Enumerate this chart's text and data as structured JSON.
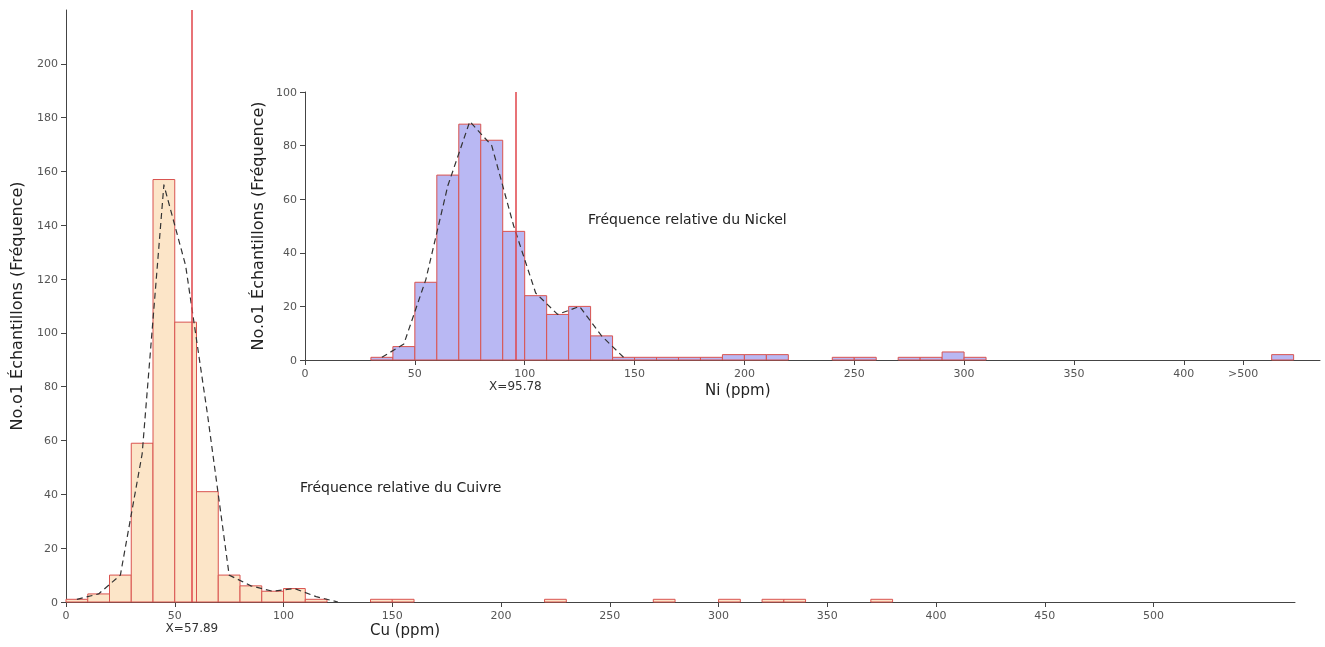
{
  "chart_data": [
    {
      "type": "histogram",
      "xlabel": "Cu (ppm)",
      "ylabel": "No.o1 Échantillons (Fréquence)",
      "xlim": [
        0,
        565
      ],
      "ylim": [
        0,
        220
      ],
      "xticks": [
        0,
        50,
        100,
        150,
        200,
        250,
        300,
        350,
        400,
        450,
        500
      ],
      "yticks": [
        0,
        20,
        40,
        60,
        80,
        100,
        120,
        140,
        160,
        180,
        200
      ],
      "grid": false,
      "annotations": [
        "Fréquence relative du Cuivre"
      ],
      "ref_lines": [
        {
          "axis": "x",
          "value": 57.89,
          "label": "X=57.89",
          "color": "#e0454a"
        }
      ],
      "series": [
        {
          "color": "#fce5c8",
          "bins": [
            0,
            10,
            20,
            30,
            40,
            50,
            60,
            70,
            80,
            90,
            100,
            110,
            120,
            130,
            140,
            150,
            160,
            170,
            180,
            190,
            200,
            210,
            220,
            230,
            240,
            250,
            260,
            270,
            280,
            290,
            300,
            310,
            320,
            330,
            340,
            350,
            360,
            370,
            380
          ],
          "values": [
            1,
            3,
            10,
            59,
            157,
            104,
            41,
            10,
            6,
            4,
            5,
            1,
            0,
            0,
            1,
            1,
            0,
            0,
            0,
            0,
            0,
            0,
            1,
            0,
            0,
            0,
            0,
            1,
            0,
            0,
            1,
            0,
            1,
            1,
            0,
            0,
            0,
            1
          ]
        },
        {
          "type": "line",
          "color": "#333333",
          "line_style": "dashed",
          "marker": "none",
          "x": [
            5,
            15,
            25,
            35,
            45,
            55,
            65,
            75,
            85,
            95,
            105,
            115,
            125
          ],
          "values": [
            1,
            3,
            10,
            55,
            155,
            125,
            70,
            10,
            6,
            4,
            5,
            2,
            0
          ]
        }
      ]
    },
    {
      "type": "histogram",
      "xlabel": "Ni (ppm)",
      "ylabel": "No.o1 Échantillons (Fréquence)",
      "xlim": [
        0,
        462
      ],
      "ylim": [
        0,
        100
      ],
      "xticks": [
        0,
        50,
        100,
        150,
        200,
        250,
        300,
        350,
        400,
        {
          "value": 427,
          "label": ">500"
        }
      ],
      "yticks": [
        0,
        20,
        40,
        60,
        80,
        100
      ],
      "grid": false,
      "annotations": [
        "Fréquence relative du Nickel"
      ],
      "ref_lines": [
        {
          "axis": "x",
          "value": 95.78,
          "label": "X=95.78",
          "color": "#e0454a"
        }
      ],
      "series": [
        {
          "color": "#b9b8f3",
          "bins": [
            30,
            40,
            50,
            60,
            70,
            80,
            90,
            100,
            110,
            120,
            130,
            140,
            150,
            160,
            170,
            180,
            190,
            200,
            210,
            220,
            230,
            240,
            250,
            260,
            270,
            280,
            290,
            300,
            310,
            320,
            330,
            340,
            350,
            360,
            370,
            380,
            390,
            400,
            410,
            420,
            430,
            440,
            450
          ],
          "values": [
            1,
            5,
            29,
            69,
            88,
            82,
            48,
            24,
            17,
            20,
            9,
            1,
            1,
            1,
            1,
            1,
            2,
            2,
            2,
            0,
            0,
            1,
            1,
            0,
            1,
            1,
            3,
            1,
            0,
            0,
            0,
            0,
            0,
            0,
            0,
            0,
            0,
            0,
            0,
            0,
            0,
            2
          ]
        },
        {
          "type": "line",
          "color": "#333333",
          "line_style": "dashed",
          "marker": "none",
          "x": [
            35,
            45,
            55,
            65,
            75,
            85,
            95,
            105,
            115,
            125,
            135,
            145
          ],
          "values": [
            1,
            6,
            30,
            65,
            89,
            80,
            50,
            25,
            17,
            20,
            9,
            1
          ]
        }
      ]
    }
  ]
}
